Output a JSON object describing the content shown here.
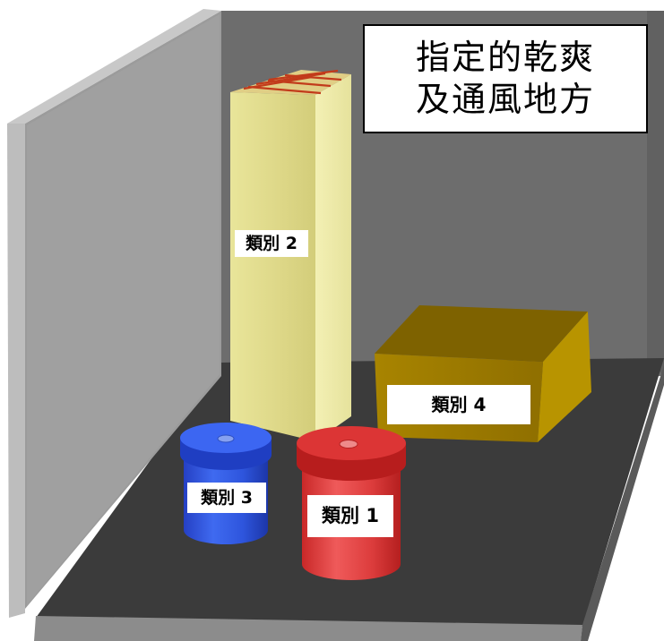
{
  "title": {
    "line1": "指定的乾爽",
    "line2": "及通風地方"
  },
  "containers": {
    "category_1": "類別 1",
    "category_2": "類別 2",
    "category_3": "類別 3",
    "category_4": "類別 4"
  },
  "colors": {
    "back_wall": "#6e6e6e",
    "left_wall": "#999999",
    "floor": "#3a3a3a",
    "tall_box": "#e3df8a",
    "brown_box": "#a07c00",
    "blue_drum": "#2a4fd6",
    "red_drum": "#d93a3a"
  }
}
